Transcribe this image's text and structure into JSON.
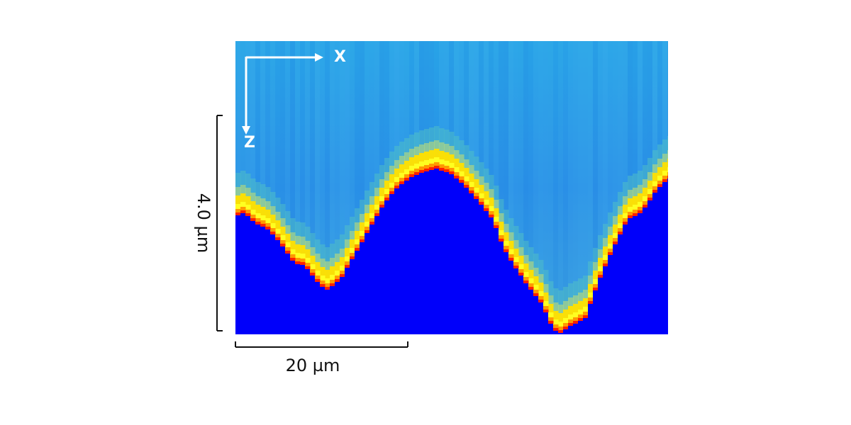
{
  "image": {
    "description_colors": {
      "background_top": "#2aa0e6",
      "background_mid": "#2b8fe8",
      "substrate": "#0000fa",
      "interface_red": "#ff1a00",
      "interface_yellow": "#ffff00",
      "interface_orange": "#ffb000"
    }
  },
  "axes": {
    "x_label": "X",
    "z_label": "Z",
    "arrow_color": "#ffffff"
  },
  "scale_bars": {
    "vertical_label": "4.0 µm",
    "horizontal_label": "20 µm",
    "bar_color": "#111111"
  }
}
